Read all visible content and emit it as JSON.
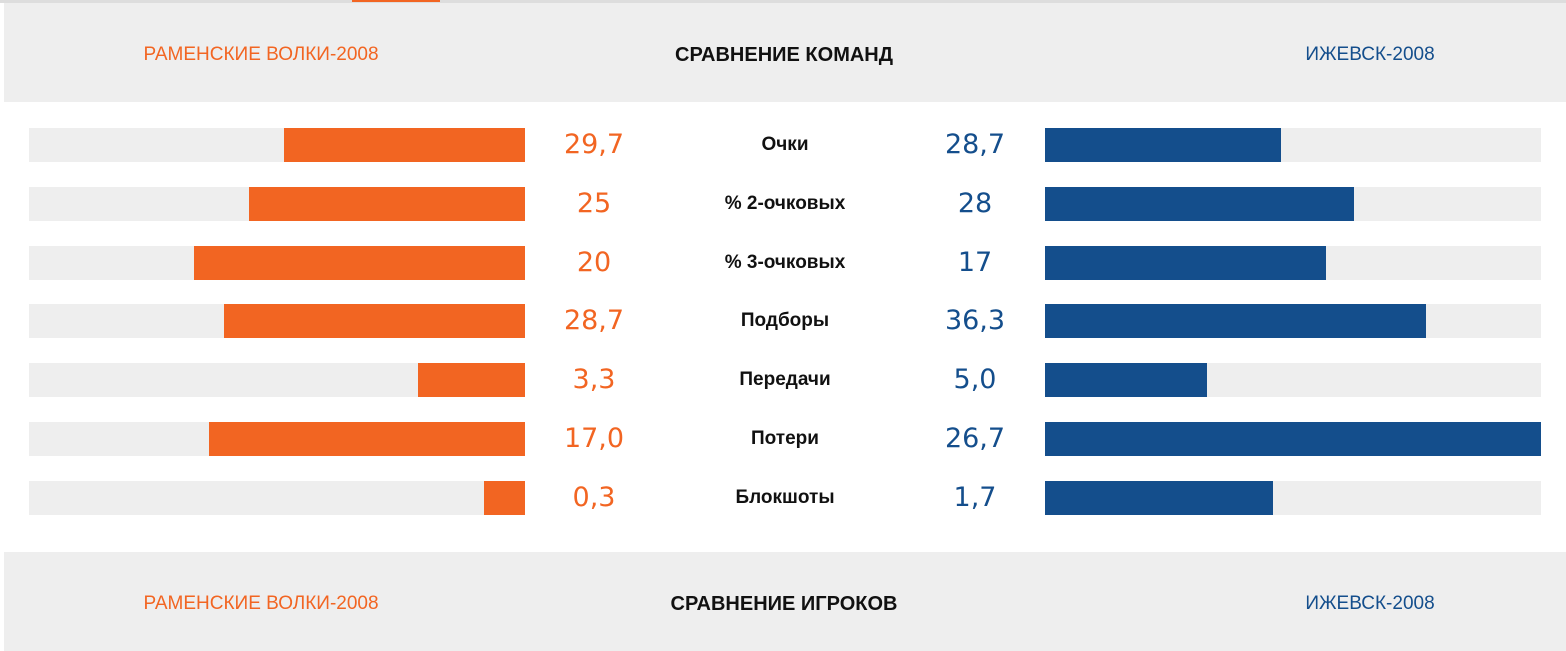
{
  "team_comparison": {
    "title": "СРАВНЕНИЕ КОМАНД",
    "home_team": "РАМЕНСКИЕ ВОЛКИ-2008",
    "away_team": "ИЖЕВСК-2008",
    "colors": {
      "home": "#f26522",
      "away": "#144e8c",
      "track": "#eeeeee"
    },
    "stats": [
      {
        "label": "Очки",
        "home_value": "29,7",
        "away_value": "28,7",
        "home_share": 0.486,
        "away_share": 0.476
      },
      {
        "label": "% 2-очковых",
        "home_value": "25",
        "away_value": "28",
        "home_share": 0.557,
        "away_share": 0.623
      },
      {
        "label": "% 3-очковых",
        "home_value": "20",
        "away_value": "17",
        "home_share": 0.667,
        "away_share": 0.567
      },
      {
        "label": "Подборы",
        "home_value": "28,7",
        "away_value": "36,3",
        "home_share": 0.607,
        "away_share": 0.768
      },
      {
        "label": "Передачи",
        "home_value": "3,3",
        "away_value": "5,0",
        "home_share": 0.216,
        "away_share": 0.327
      },
      {
        "label": "Потери",
        "home_value": "17,0",
        "away_value": "26,7",
        "home_share": 0.637,
        "away_share": 1.0
      },
      {
        "label": "Блокшоты",
        "home_value": "0,3",
        "away_value": "1,7",
        "home_share": 0.083,
        "away_share": 0.46
      }
    ]
  },
  "player_comparison": {
    "title": "СРАВНЕНИЕ ИГРОКОВ",
    "home_team": "РАМЕНСКИЕ ВОЛКИ-2008",
    "away_team": "ИЖЕВСК-2008"
  }
}
